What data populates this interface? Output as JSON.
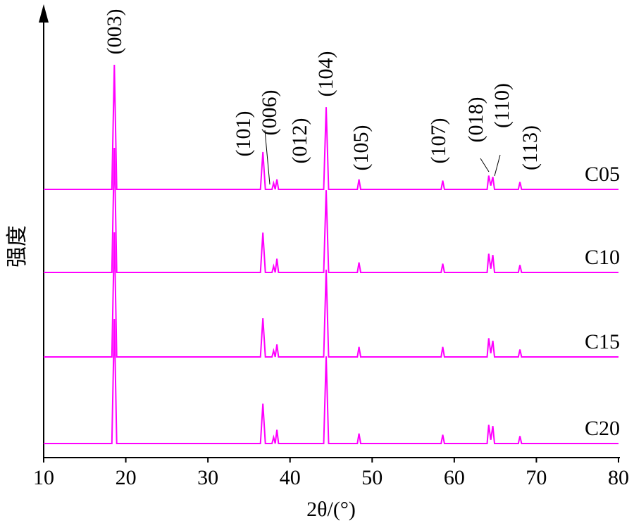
{
  "chart_data": {
    "type": "line",
    "xlabel": "2θ/(°)",
    "ylabel": "强度",
    "xlim": [
      10,
      80
    ],
    "xticks": [
      10,
      20,
      30,
      40,
      50,
      60,
      70,
      80
    ],
    "ylim": [
      0,
      100
    ],
    "x": [
      10,
      18.3,
      18.6,
      18.9,
      36.4,
      36.7,
      37.0,
      37.8,
      38.0,
      38.2,
      38.4,
      38.6,
      44.1,
      44.4,
      44.7,
      48.2,
      48.4,
      48.6,
      58.4,
      58.6,
      58.8,
      64.0,
      64.2,
      64.45,
      64.7,
      64.9,
      67.8,
      68.0,
      68.2,
      80
    ],
    "annotations": [
      "(003)",
      "(101)",
      "(006)",
      "(012)",
      "(104)",
      "(105)",
      "(107)",
      "(018)",
      "(110)",
      "(113)"
    ],
    "series": [
      {
        "name": "C05",
        "color": "#ff00ff",
        "values": [
          0,
          0,
          100,
          0,
          0,
          30,
          0,
          0,
          5,
          0,
          8,
          0,
          0,
          66,
          0,
          0,
          8,
          0,
          0,
          7,
          0,
          0,
          11,
          3,
          10,
          0,
          0,
          6,
          0,
          0
        ]
      },
      {
        "name": "C10",
        "color": "#ff00ff",
        "values": [
          0,
          0,
          100,
          0,
          0,
          32,
          0,
          0,
          5,
          0,
          11,
          0,
          0,
          66,
          0,
          0,
          8,
          0,
          0,
          7,
          0,
          0,
          15,
          3,
          14,
          0,
          0,
          6,
          0,
          0
        ]
      },
      {
        "name": "C15",
        "color": "#ff00ff",
        "values": [
          0,
          0,
          100,
          0,
          0,
          31,
          0,
          0,
          5,
          0,
          10,
          0,
          0,
          70,
          0,
          0,
          8,
          0,
          0,
          8,
          0,
          0,
          15,
          3,
          13,
          0,
          0,
          6,
          0,
          0
        ]
      },
      {
        "name": "C20",
        "color": "#ff00ff",
        "values": [
          0,
          0,
          100,
          0,
          0,
          32,
          0,
          0,
          5,
          0,
          11,
          0,
          0,
          70,
          0,
          0,
          8,
          0,
          0,
          7,
          0,
          0,
          15,
          3,
          14,
          0,
          0,
          6,
          0,
          0
        ]
      }
    ]
  }
}
